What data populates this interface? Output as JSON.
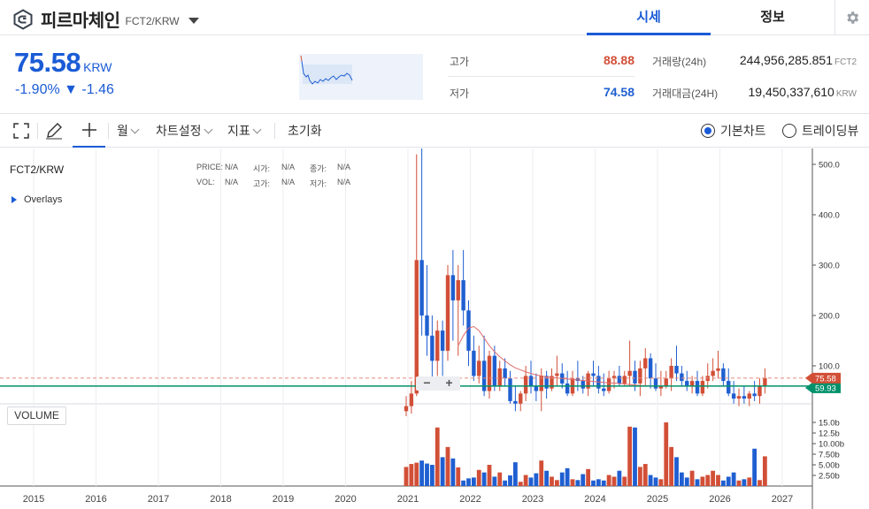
{
  "header": {
    "coin_name": "피르마체인",
    "pair": "FCT2/KRW",
    "tabs": [
      {
        "label": "시세",
        "active": true
      },
      {
        "label": "정보",
        "active": false
      }
    ]
  },
  "summary": {
    "price": "75.58",
    "price_unit": "KRW",
    "change": "-1.90% ▼ -1.46",
    "high_label": "고가",
    "high_value": "88.88",
    "low_label": "저가",
    "low_value": "74.58",
    "volume_label": "거래량(24h)",
    "volume_value": "244,956,285.851",
    "volume_unit": "FCT2",
    "amount_label": "거래대금(24H)",
    "amount_value": "19,450,337,610",
    "amount_unit": "KRW"
  },
  "toolbar": {
    "period": "월",
    "chart_settings": "차트설정",
    "indicators": "지표",
    "reset": "초기화",
    "basic_chart": "기본차트",
    "trading_view": "트레이딩뷰"
  },
  "chart": {
    "symbol": "FCT2/KRW",
    "overlays": "Overlays",
    "legend": {
      "price_label": "PRICE:",
      "price_value": "N/A",
      "open_label": "시가:",
      "open_value": "N/A",
      "close_label": "종가:",
      "close_value": "N/A",
      "vol_label": "VOL:",
      "vol_value": "N/A",
      "high_label": "고가:",
      "high_value": "N/A",
      "low_label": "저가:",
      "low_value": "N/A"
    },
    "volume_label": "VOLUME",
    "current_price_tag": "75.58",
    "ma_tag": "59.93",
    "zoom_minus": "−",
    "zoom_plus": "+"
  },
  "colors": {
    "accent": "#1a5bd6",
    "up": "#d24f37",
    "down": "#1f5fd1",
    "ma_line": "#00906a"
  },
  "chart_data": {
    "type": "candlestick",
    "interval": "monthly",
    "price_axis": {
      "ticks": [
        "100.0",
        "200.0",
        "300.0",
        "400.0",
        "500.0"
      ],
      "range": [
        0,
        520
      ]
    },
    "volume_axis": {
      "ticks": [
        "2.50b",
        "5.00b",
        "7.50b",
        "10.00b",
        "12.5b",
        "15.0b"
      ],
      "range": [
        0,
        16
      ]
    },
    "x_ticks": [
      "2015",
      "2016",
      "2017",
      "2018",
      "2019",
      "2020",
      "2021",
      "2022",
      "2023",
      "2024",
      "2025",
      "2026",
      "2027"
    ],
    "candles": [
      {
        "o": 10,
        "h": 40,
        "l": 0,
        "c": 20,
        "v": 4.5
      },
      {
        "o": 20,
        "h": 70,
        "l": 5,
        "c": 45,
        "v": 5.2
      },
      {
        "o": 45,
        "h": 520,
        "l": 40,
        "c": 310,
        "v": 5.5
      },
      {
        "o": 310,
        "h": 540,
        "l": 160,
        "c": 200,
        "v": 6.0
      },
      {
        "o": 200,
        "h": 300,
        "l": 120,
        "c": 160,
        "v": 5.3
      },
      {
        "o": 160,
        "h": 200,
        "l": 70,
        "c": 110,
        "v": 5.0
      },
      {
        "o": 110,
        "h": 190,
        "l": 80,
        "c": 170,
        "v": 13.8
      },
      {
        "o": 170,
        "h": 190,
        "l": 80,
        "c": 130,
        "v": 6.8
      },
      {
        "o": 130,
        "h": 300,
        "l": 110,
        "c": 280,
        "v": 9.2
      },
      {
        "o": 280,
        "h": 330,
        "l": 150,
        "c": 230,
        "v": 6.5
      },
      {
        "o": 230,
        "h": 300,
        "l": 120,
        "c": 270,
        "v": 4.4
      },
      {
        "o": 270,
        "h": 330,
        "l": 180,
        "c": 210,
        "v": 1.3
      },
      {
        "o": 210,
        "h": 230,
        "l": 100,
        "c": 130,
        "v": 1.8
      },
      {
        "o": 130,
        "h": 160,
        "l": 70,
        "c": 80,
        "v": 2.0
      },
      {
        "o": 80,
        "h": 140,
        "l": 65,
        "c": 110,
        "v": 3.8
      },
      {
        "o": 110,
        "h": 160,
        "l": 40,
        "c": 50,
        "v": 3.2
      },
      {
        "o": 50,
        "h": 130,
        "l": 35,
        "c": 120,
        "v": 5.0
      },
      {
        "o": 120,
        "h": 140,
        "l": 50,
        "c": 60,
        "v": 2.2
      },
      {
        "o": 60,
        "h": 110,
        "l": 50,
        "c": 95,
        "v": 3.2
      },
      {
        "o": 95,
        "h": 115,
        "l": 60,
        "c": 75,
        "v": 1.3
      },
      {
        "o": 75,
        "h": 90,
        "l": 25,
        "c": 30,
        "v": 2.5
      },
      {
        "o": 30,
        "h": 60,
        "l": 10,
        "c": 25,
        "v": 5.6
      },
      {
        "o": 25,
        "h": 50,
        "l": 10,
        "c": 45,
        "v": 1.0
      },
      {
        "o": 45,
        "h": 100,
        "l": 30,
        "c": 80,
        "v": 2.6
      },
      {
        "o": 80,
        "h": 110,
        "l": 45,
        "c": 60,
        "v": 2.0
      },
      {
        "o": 60,
        "h": 85,
        "l": 30,
        "c": 50,
        "v": 3.0
      },
      {
        "o": 50,
        "h": 95,
        "l": 10,
        "c": 80,
        "v": 6.0
      },
      {
        "o": 80,
        "h": 90,
        "l": 35,
        "c": 55,
        "v": 3.6
      },
      {
        "o": 55,
        "h": 95,
        "l": 50,
        "c": 80,
        "v": 2.2
      },
      {
        "o": 80,
        "h": 120,
        "l": 60,
        "c": 85,
        "v": 1.4
      },
      {
        "o": 85,
        "h": 105,
        "l": 55,
        "c": 65,
        "v": 3.2
      },
      {
        "o": 65,
        "h": 90,
        "l": 40,
        "c": 45,
        "v": 4.2
      },
      {
        "o": 45,
        "h": 90,
        "l": 40,
        "c": 75,
        "v": 1.6
      },
      {
        "o": 75,
        "h": 110,
        "l": 50,
        "c": 70,
        "v": 1.4
      },
      {
        "o": 70,
        "h": 80,
        "l": 45,
        "c": 55,
        "v": 2.8
      },
      {
        "o": 55,
        "h": 90,
        "l": 40,
        "c": 85,
        "v": 4.0
      },
      {
        "o": 85,
        "h": 110,
        "l": 60,
        "c": 80,
        "v": 1.3
      },
      {
        "o": 80,
        "h": 100,
        "l": 45,
        "c": 55,
        "v": 1.6
      },
      {
        "o": 55,
        "h": 85,
        "l": 40,
        "c": 50,
        "v": 1.3
      },
      {
        "o": 50,
        "h": 90,
        "l": 45,
        "c": 75,
        "v": 2.6
      },
      {
        "o": 75,
        "h": 90,
        "l": 55,
        "c": 80,
        "v": 2.2
      },
      {
        "o": 80,
        "h": 100,
        "l": 60,
        "c": 65,
        "v": 3.6
      },
      {
        "o": 65,
        "h": 90,
        "l": 60,
        "c": 80,
        "v": 2.2
      },
      {
        "o": 80,
        "h": 150,
        "l": 60,
        "c": 90,
        "v": 14.0
      },
      {
        "o": 90,
        "h": 110,
        "l": 50,
        "c": 65,
        "v": 13.8
      },
      {
        "o": 65,
        "h": 110,
        "l": 40,
        "c": 95,
        "v": 4.5
      },
      {
        "o": 95,
        "h": 135,
        "l": 60,
        "c": 115,
        "v": 5.2
      },
      {
        "o": 115,
        "h": 125,
        "l": 55,
        "c": 75,
        "v": 2.6
      },
      {
        "o": 75,
        "h": 105,
        "l": 50,
        "c": 55,
        "v": 2.0
      },
      {
        "o": 55,
        "h": 90,
        "l": 40,
        "c": 60,
        "v": 1.6
      },
      {
        "o": 60,
        "h": 90,
        "l": 55,
        "c": 75,
        "v": 15.0
      },
      {
        "o": 75,
        "h": 115,
        "l": 50,
        "c": 100,
        "v": 9.2
      },
      {
        "o": 100,
        "h": 140,
        "l": 70,
        "c": 85,
        "v": 6.8
      },
      {
        "o": 85,
        "h": 100,
        "l": 60,
        "c": 70,
        "v": 3.2
      },
      {
        "o": 70,
        "h": 90,
        "l": 50,
        "c": 60,
        "v": 2.0
      },
      {
        "o": 60,
        "h": 80,
        "l": 45,
        "c": 70,
        "v": 3.6
      },
      {
        "o": 70,
        "h": 90,
        "l": 40,
        "c": 45,
        "v": 1.6
      },
      {
        "o": 45,
        "h": 80,
        "l": 40,
        "c": 70,
        "v": 2.2
      },
      {
        "o": 70,
        "h": 105,
        "l": 55,
        "c": 80,
        "v": 2.6
      },
      {
        "o": 80,
        "h": 115,
        "l": 70,
        "c": 90,
        "v": 3.6
      },
      {
        "o": 90,
        "h": 130,
        "l": 75,
        "c": 95,
        "v": 2.6
      },
      {
        "o": 95,
        "h": 105,
        "l": 60,
        "c": 70,
        "v": 1.3
      },
      {
        "o": 70,
        "h": 95,
        "l": 40,
        "c": 45,
        "v": 2.2
      },
      {
        "o": 45,
        "h": 70,
        "l": 25,
        "c": 35,
        "v": 3.2
      },
      {
        "o": 35,
        "h": 55,
        "l": 20,
        "c": 40,
        "v": 1.3
      },
      {
        "o": 40,
        "h": 60,
        "l": 25,
        "c": 35,
        "v": 1.6
      },
      {
        "o": 35,
        "h": 50,
        "l": 20,
        "c": 45,
        "v": 2.0
      },
      {
        "o": 45,
        "h": 70,
        "l": 30,
        "c": 40,
        "v": 8.8
      },
      {
        "o": 40,
        "h": 75,
        "l": 25,
        "c": 60,
        "v": 1.4
      },
      {
        "o": 60,
        "h": 95,
        "l": 45,
        "c": 76,
        "v": 7.0
      }
    ],
    "ma": [
      140,
      160,
      175,
      178,
      170,
      155,
      140,
      128,
      118,
      110,
      102,
      96,
      92,
      88,
      85,
      82,
      80,
      78,
      77,
      76,
      75,
      74,
      73,
      72,
      71,
      70,
      69,
      68,
      67,
      66,
      66,
      65,
      64,
      63,
      62,
      61,
      60,
      60
    ]
  }
}
